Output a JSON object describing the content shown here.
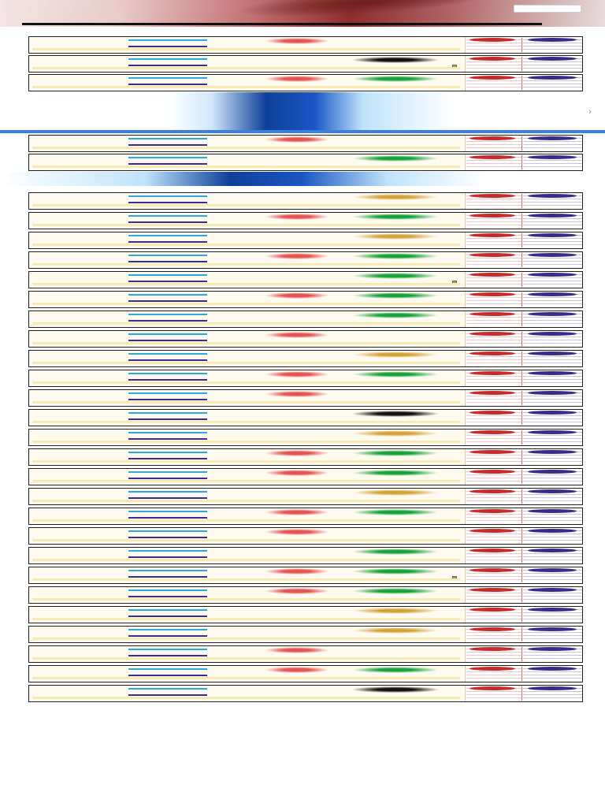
{
  "header": {
    "site_title": "",
    "search_placeholder": ""
  },
  "nav": [
    {
      "label": ""
    },
    {
      "label": ""
    },
    {
      "label": ""
    },
    {
      "label": ""
    },
    {
      "label": ""
    },
    {
      "label": ""
    },
    {
      "label": ""
    },
    {
      "label": ""
    }
  ],
  "ads": {
    "ad1_title": "",
    "ad1_subtitle": "",
    "ad1_close": "›"
  },
  "colors": {
    "sunday_red": "#d93636",
    "festival_green": "#15a23a",
    "weekday_blue": "#3b2a8f",
    "ad_blue": "#1a56c4"
  },
  "calendar_rows": [
    {
      "date": "",
      "notes": ""
    },
    {
      "date": "",
      "notes": ""
    },
    {
      "date": "",
      "notes": ""
    },
    {
      "date": "",
      "notes": ""
    },
    {
      "date": "",
      "notes": ""
    },
    {
      "date": "",
      "notes": ""
    },
    {
      "date": "",
      "notes": ""
    },
    {
      "date": "",
      "notes": ""
    },
    {
      "date": "",
      "notes": ""
    },
    {
      "date": "",
      "notes": ""
    },
    {
      "date": "",
      "notes": ""
    },
    {
      "date": "",
      "notes": ""
    },
    {
      "date": "",
      "notes": ""
    },
    {
      "date": "",
      "notes": ""
    },
    {
      "date": "",
      "notes": ""
    },
    {
      "date": "",
      "notes": ""
    },
    {
      "date": "",
      "notes": ""
    },
    {
      "date": "",
      "notes": ""
    },
    {
      "date": "",
      "notes": ""
    },
    {
      "date": "",
      "notes": ""
    },
    {
      "date": "",
      "notes": ""
    },
    {
      "date": "",
      "notes": ""
    },
    {
      "date": "",
      "notes": ""
    },
    {
      "date": "",
      "notes": ""
    },
    {
      "date": "",
      "notes": ""
    },
    {
      "date": "",
      "notes": ""
    },
    {
      "date": "",
      "notes": ""
    },
    {
      "date": "",
      "notes": ""
    },
    {
      "date": "",
      "notes": ""
    },
    {
      "date": "",
      "notes": ""
    },
    {
      "date": "",
      "notes": ""
    }
  ],
  "footer_links": [
    "",
    "",
    "",
    "",
    "",
    "",
    "",
    "",
    "",
    "",
    "",
    "",
    "",
    "",
    "",
    "",
    "",
    "",
    "",
    "",
    "",
    "",
    "",
    "",
    ""
  ]
}
